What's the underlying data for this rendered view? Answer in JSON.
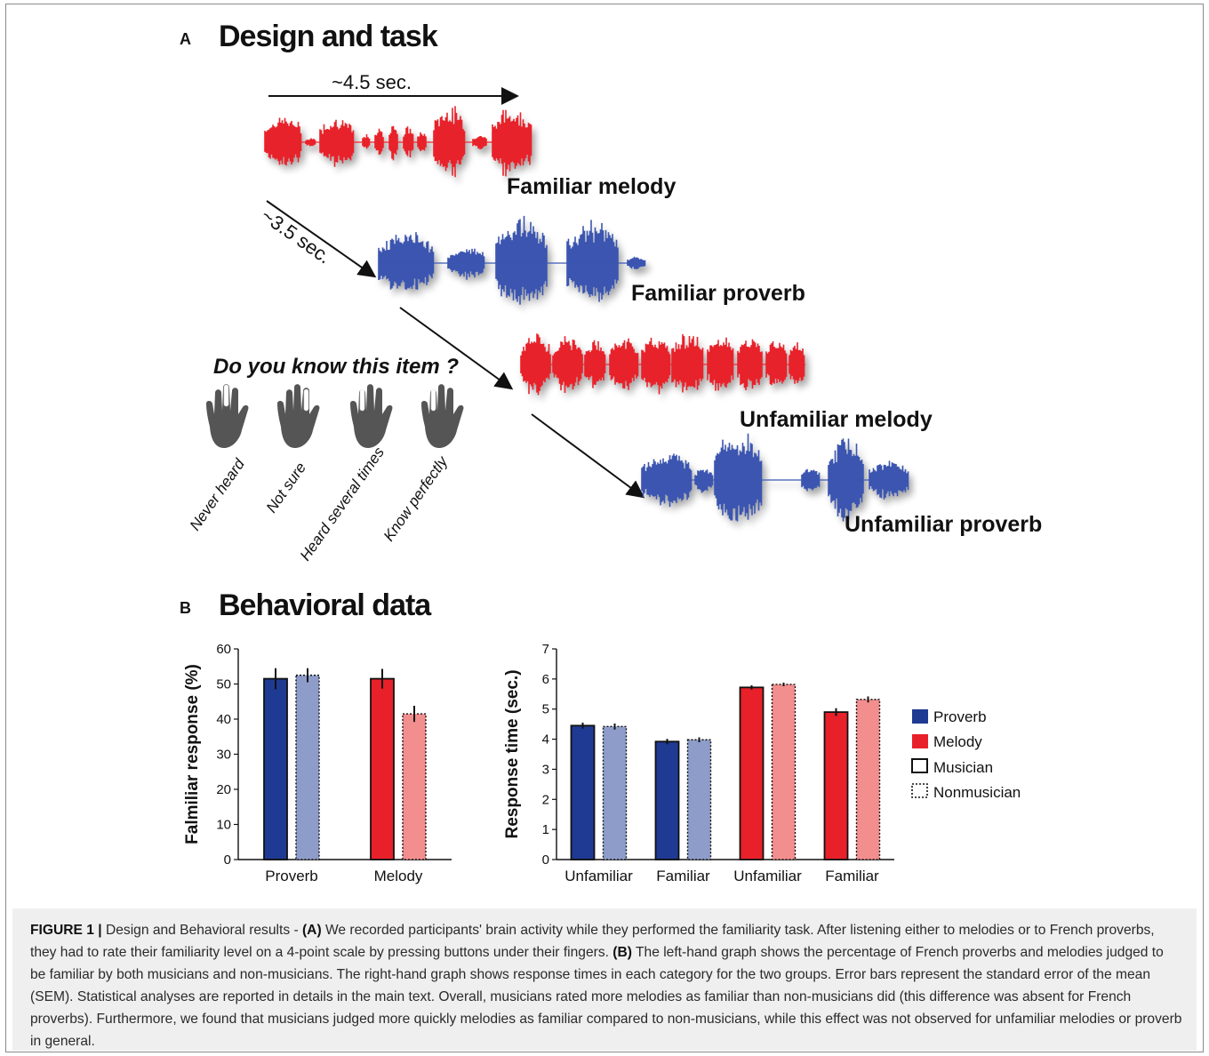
{
  "panelA": {
    "letter": "A",
    "title": "Design and task",
    "time_long": "~4.5 sec.",
    "time_short": "~3.5 sec.",
    "labels": {
      "familiar_melody": "Familiar melody",
      "familiar_proverb": "Familiar proverb",
      "unfamiliar_melody": "Unfamiliar melody",
      "unfamiliar_proverb": "Unfamiliar proverb"
    },
    "question": "Do you know this item ?",
    "responses": [
      "Never heard",
      "Not sure",
      "Heard several times",
      "Know perfectly"
    ]
  },
  "panelB": {
    "letter": "B",
    "title": "Behavioral data"
  },
  "legend": [
    "Proverb",
    "Melody",
    "Musician",
    "Nonmusician"
  ],
  "colors": {
    "proverb_musician": "#1f3a93",
    "proverb_nonmusician": "#8e9cc9",
    "melody_musician": "#e8202a",
    "melody_nonmusician": "#f28e8e",
    "wave_red": "#e8202a",
    "wave_blue": "#3a55b0",
    "hand": "#555555"
  },
  "chart_data": [
    {
      "type": "bar",
      "ylabel": "Falmiliar response (%)",
      "ylim": [
        0,
        60
      ],
      "yticks": [
        0,
        10,
        20,
        30,
        40,
        50,
        60
      ],
      "categories": [
        "Proverb",
        "Melody"
      ],
      "series": [
        {
          "name": "Musician",
          "values": [
            51.5,
            51.5
          ],
          "errors": [
            3.0,
            2.8
          ]
        },
        {
          "name": "Nonmusician",
          "values": [
            52.5,
            41.5
          ],
          "errors": [
            2.0,
            2.3
          ]
        }
      ]
    },
    {
      "type": "bar",
      "ylabel": "Response time (sec.)",
      "ylim": [
        0,
        7
      ],
      "yticks": [
        0,
        1,
        2,
        3,
        4,
        5,
        6,
        7
      ],
      "categories": [
        "Unfamiliar",
        "Familiar",
        "Unfamiliar",
        "Familiar"
      ],
      "category_groups": [
        "Proverb",
        "Proverb",
        "Melody",
        "Melody"
      ],
      "series": [
        {
          "name": "Musician",
          "values": [
            4.45,
            3.92,
            5.72,
            4.9
          ],
          "errors": [
            0.1,
            0.09,
            0.07,
            0.13
          ]
        },
        {
          "name": "Nonmusician",
          "values": [
            4.42,
            3.98,
            5.82,
            5.32
          ],
          "errors": [
            0.1,
            0.08,
            0.06,
            0.1
          ]
        }
      ]
    }
  ],
  "caption": {
    "figure_label": "FIGURE 1 |",
    "part1": " Design and Behavioral results - ",
    "a_label": "(A)",
    "part2": " We recorded participants' brain activity while they performed the familiarity task. After listening either to melodies or to French proverbs, they had to rate their familiarity level on a 4-point scale by pressing buttons under their fingers. ",
    "b_label": "(B)",
    "part3": " The left-hand graph shows the percentage of French proverbs and melodies judged to be familiar by both musicians and non-musicians. The right-hand graph shows response times in each category for the two groups. Error bars represent the standard error of the mean (SEM). Statistical analyses are reported in details in the main text. Overall, musicians rated more melodies as familiar than non-musicians did (this difference was absent for French proverbs). Furthermore, we found that musicians judged more quickly melodies as familiar compared to non-musicians, while this effect was not observed for unfamiliar melodies or proverb in general."
  }
}
